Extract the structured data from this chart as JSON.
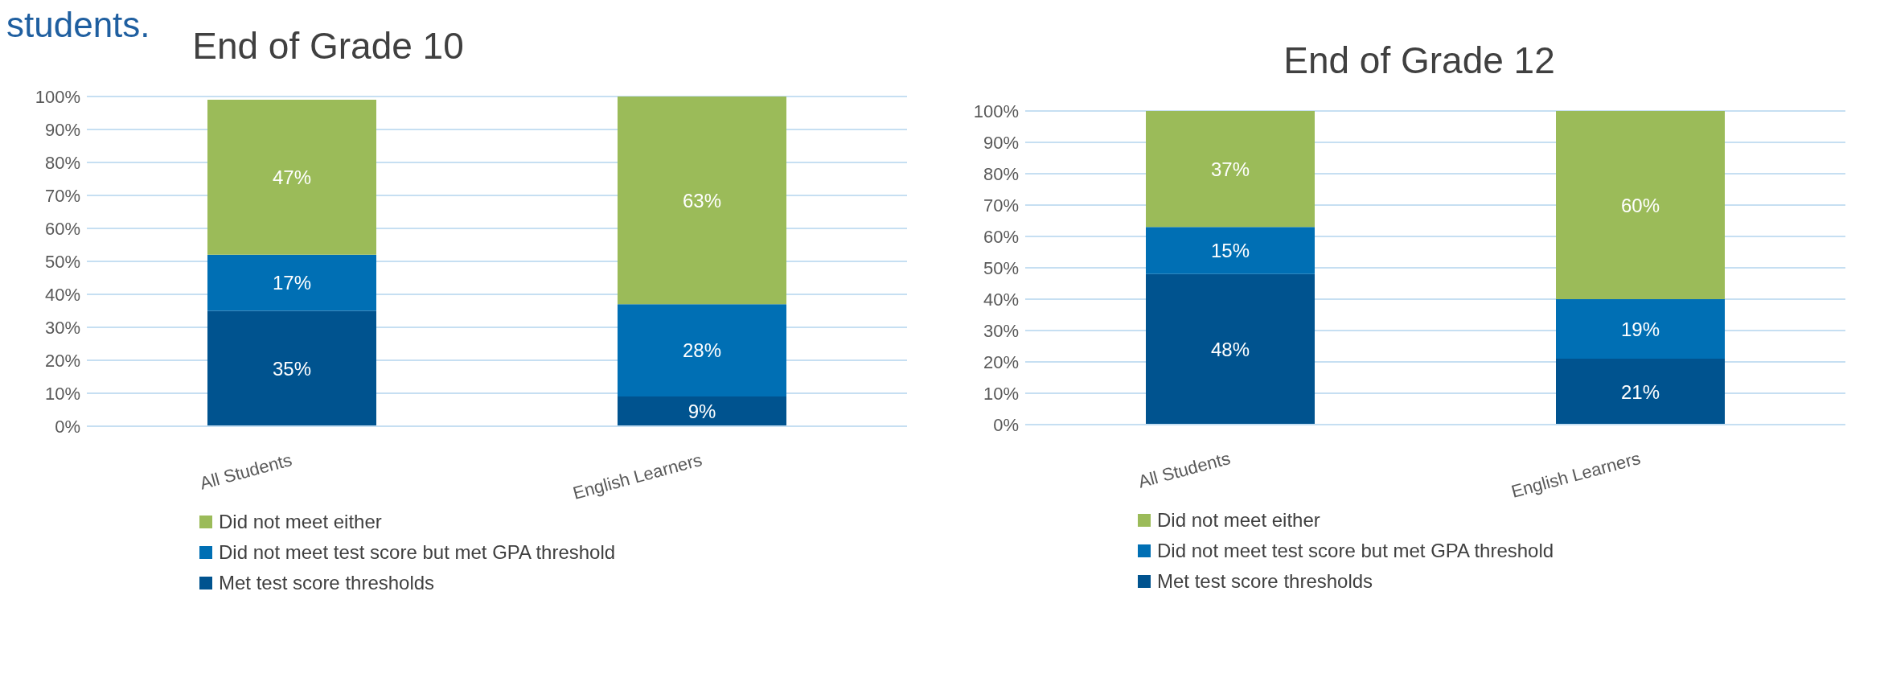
{
  "chart_data": [
    {
      "type": "bar",
      "stacked": true,
      "title": "End of Grade 10",
      "annotations": [
        "students."
      ],
      "categories": [
        "All Students",
        "English Learners"
      ],
      "ylim": [
        0,
        100
      ],
      "yticks": [
        {
          "value": 0,
          "label": "0%"
        },
        {
          "value": 10,
          "label": "10%"
        },
        {
          "value": 20,
          "label": "20%"
        },
        {
          "value": 30,
          "label": "30%"
        },
        {
          "value": 40,
          "label": "40%"
        },
        {
          "value": 50,
          "label": "50%"
        },
        {
          "value": 60,
          "label": "60%"
        },
        {
          "value": 70,
          "label": "70%"
        },
        {
          "value": 80,
          "label": "80%"
        },
        {
          "value": 90,
          "label": "90%"
        },
        {
          "value": 100,
          "label": "100%"
        }
      ],
      "grid": "y",
      "legend": "bottom",
      "series": [
        {
          "name": "Met test score thresholds",
          "color": "#00538f",
          "values": [
            35,
            9
          ],
          "value_labels": [
            "35%",
            "9%"
          ]
        },
        {
          "name": "Did not meet test score but met GPA threshold",
          "color": "#006fb4",
          "values": [
            17,
            28
          ],
          "value_labels": [
            "17%",
            "28%"
          ]
        },
        {
          "name": "Did not meet either",
          "color": "#9bbb59",
          "values": [
            47,
            63
          ],
          "value_labels": [
            "47%",
            "63%"
          ]
        }
      ]
    },
    {
      "type": "bar",
      "stacked": true,
      "title": "End of Grade 12",
      "categories": [
        "All Students",
        "English Learners"
      ],
      "ylim": [
        0,
        100
      ],
      "yticks": [
        {
          "value": 0,
          "label": "0%"
        },
        {
          "value": 10,
          "label": "10%"
        },
        {
          "value": 20,
          "label": "20%"
        },
        {
          "value": 30,
          "label": "30%"
        },
        {
          "value": 40,
          "label": "40%"
        },
        {
          "value": 50,
          "label": "50%"
        },
        {
          "value": 60,
          "label": "60%"
        },
        {
          "value": 70,
          "label": "70%"
        },
        {
          "value": 80,
          "label": "80%"
        },
        {
          "value": 90,
          "label": "90%"
        },
        {
          "value": 100,
          "label": "100%"
        }
      ],
      "grid": "y",
      "legend": "bottom",
      "series": [
        {
          "name": "Met test score thresholds",
          "color": "#00538f",
          "values": [
            48,
            21
          ],
          "value_labels": [
            "48%",
            "21%"
          ]
        },
        {
          "name": "Did not meet test score but met GPA threshold",
          "color": "#006fb4",
          "values": [
            15,
            19
          ],
          "value_labels": [
            "15%",
            "19%"
          ]
        },
        {
          "name": "Did not meet either",
          "color": "#9bbb59",
          "values": [
            37,
            60
          ],
          "value_labels": [
            "37%",
            "60%"
          ]
        }
      ]
    }
  ]
}
